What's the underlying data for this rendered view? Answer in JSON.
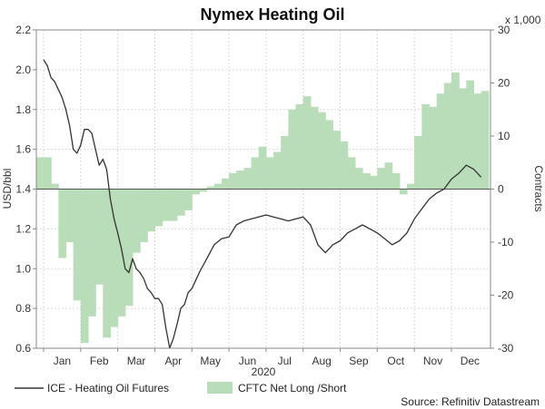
{
  "chart_data": {
    "type": "line",
    "title": "Nymex Heating Oil",
    "year_label": "2020",
    "right_unit": "x 1,000",
    "ylabel_left": "USD/bbl",
    "ylabel_right": "Contracts",
    "source": "Source: Refinitiv Datastream",
    "months": [
      "Jan",
      "Feb",
      "Mar",
      "Apr",
      "May",
      "Jun",
      "Jul",
      "Aug",
      "Sep",
      "Oct",
      "Nov",
      "Dec"
    ],
    "ylim_left": [
      0.6,
      2.2
    ],
    "yticks_left": [
      "0.6",
      "0.8",
      "1.0",
      "1.2",
      "1.4",
      "1.6",
      "1.8",
      "2.0",
      "2.2"
    ],
    "ylim_right": [
      -30,
      30
    ],
    "yticks_right": [
      "-30",
      "-20",
      "-10",
      "0",
      "10",
      "20",
      "30"
    ],
    "grid": true,
    "legend_position": "bottom-left",
    "series": [
      {
        "name": "ICE - Heating Oil Futures",
        "axis": "left",
        "color": "#333333",
        "x_month": [
          0.0,
          0.1,
          0.2,
          0.3,
          0.4,
          0.5,
          0.6,
          0.7,
          0.8,
          0.9,
          1.0,
          1.1,
          1.2,
          1.3,
          1.4,
          1.5,
          1.6,
          1.7,
          1.8,
          1.9,
          2.0,
          2.1,
          2.2,
          2.3,
          2.4,
          2.5,
          2.6,
          2.7,
          2.8,
          2.9,
          3.0,
          3.1,
          3.2,
          3.3,
          3.4,
          3.5,
          3.6,
          3.7,
          3.8,
          3.9,
          4.0,
          4.2,
          4.4,
          4.6,
          4.8,
          5.0,
          5.2,
          5.4,
          5.6,
          5.8,
          6.0,
          6.2,
          6.4,
          6.6,
          6.8,
          7.0,
          7.2,
          7.4,
          7.6,
          7.8,
          8.0,
          8.2,
          8.4,
          8.6,
          8.8,
          9.0,
          9.2,
          9.4,
          9.6,
          9.8,
          10.0,
          10.2,
          10.4,
          10.6,
          10.8,
          11.0,
          11.2,
          11.4,
          11.6,
          11.8
        ],
        "values": [
          2.05,
          2.02,
          1.96,
          1.94,
          1.9,
          1.86,
          1.8,
          1.72,
          1.6,
          1.58,
          1.62,
          1.7,
          1.7,
          1.68,
          1.6,
          1.52,
          1.55,
          1.5,
          1.35,
          1.25,
          1.18,
          1.1,
          1.0,
          0.98,
          1.05,
          1.0,
          0.98,
          0.95,
          0.9,
          0.88,
          0.85,
          0.85,
          0.82,
          0.7,
          0.6,
          0.65,
          0.72,
          0.8,
          0.82,
          0.88,
          0.9,
          0.98,
          1.05,
          1.12,
          1.15,
          1.16,
          1.22,
          1.24,
          1.25,
          1.26,
          1.27,
          1.26,
          1.25,
          1.24,
          1.25,
          1.26,
          1.22,
          1.12,
          1.08,
          1.12,
          1.14,
          1.18,
          1.2,
          1.22,
          1.2,
          1.18,
          1.15,
          1.12,
          1.14,
          1.18,
          1.25,
          1.3,
          1.35,
          1.38,
          1.4,
          1.45,
          1.48,
          1.52,
          1.5,
          1.46
        ]
      },
      {
        "name": "CFTC Net Long /Short",
        "axis": "right",
        "type": "area",
        "color": "#b9dcb9",
        "x_month": [
          0.0,
          0.2,
          0.4,
          0.6,
          0.8,
          1.0,
          1.2,
          1.4,
          1.6,
          1.8,
          2.0,
          2.2,
          2.4,
          2.6,
          2.8,
          3.0,
          3.2,
          3.4,
          3.6,
          3.8,
          4.0,
          4.2,
          4.4,
          4.6,
          4.8,
          5.0,
          5.2,
          5.4,
          5.6,
          5.8,
          6.0,
          6.2,
          6.4,
          6.6,
          6.8,
          7.0,
          7.2,
          7.4,
          7.6,
          7.8,
          8.0,
          8.2,
          8.4,
          8.6,
          8.8,
          9.0,
          9.2,
          9.4,
          9.6,
          9.8,
          10.0,
          10.2,
          10.4,
          10.6,
          10.8,
          11.0,
          11.2,
          11.4,
          11.6,
          11.8
        ],
        "values": [
          6.0,
          1.0,
          -13.0,
          -10.0,
          -21.0,
          -29.0,
          -24.0,
          -18.0,
          -28.0,
          -26.0,
          -24.0,
          -22.0,
          -12.0,
          -10.0,
          -8.0,
          -7.0,
          -6.0,
          -6.0,
          -5.0,
          -4.0,
          -1.0,
          -0.5,
          0.5,
          1.0,
          2.0,
          3.0,
          3.5,
          4.0,
          6.0,
          8.0,
          6.0,
          7.0,
          10.0,
          15.0,
          16.0,
          17.5,
          15.5,
          14.5,
          13.0,
          11.0,
          9.0,
          6.0,
          4.0,
          3.0,
          2.5,
          4.0,
          5.0,
          3.0,
          -1.0,
          1.0,
          10.0,
          16.0,
          15.5,
          18.0,
          20.0,
          22.0,
          19.0,
          20.5,
          18.0,
          18.5
        ]
      }
    ]
  }
}
